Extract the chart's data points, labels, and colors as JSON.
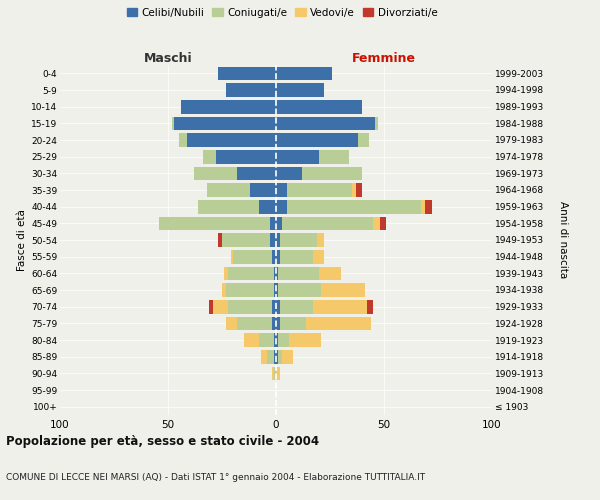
{
  "age_groups": [
    "100+",
    "95-99",
    "90-94",
    "85-89",
    "80-84",
    "75-79",
    "70-74",
    "65-69",
    "60-64",
    "55-59",
    "50-54",
    "45-49",
    "40-44",
    "35-39",
    "30-34",
    "25-29",
    "20-24",
    "15-19",
    "10-14",
    "5-9",
    "0-4"
  ],
  "birth_years": [
    "≤ 1903",
    "1904-1908",
    "1909-1913",
    "1914-1918",
    "1919-1923",
    "1924-1928",
    "1929-1933",
    "1934-1938",
    "1939-1943",
    "1944-1948",
    "1949-1953",
    "1954-1958",
    "1959-1963",
    "1964-1968",
    "1969-1973",
    "1974-1978",
    "1979-1983",
    "1984-1988",
    "1989-1993",
    "1994-1998",
    "1999-2003"
  ],
  "males": {
    "celibi": [
      0,
      0,
      0,
      1,
      1,
      2,
      2,
      1,
      1,
      2,
      3,
      3,
      8,
      12,
      18,
      28,
      41,
      47,
      44,
      23,
      27
    ],
    "coniugati": [
      0,
      0,
      1,
      3,
      7,
      16,
      20,
      22,
      21,
      18,
      22,
      51,
      28,
      20,
      20,
      6,
      4,
      1,
      0,
      0,
      0
    ],
    "vedovi": [
      0,
      0,
      1,
      3,
      7,
      5,
      7,
      2,
      2,
      1,
      0,
      0,
      0,
      0,
      0,
      0,
      0,
      0,
      0,
      0,
      0
    ],
    "divorziati": [
      0,
      0,
      0,
      0,
      0,
      0,
      2,
      0,
      0,
      0,
      2,
      0,
      0,
      0,
      0,
      0,
      0,
      0,
      0,
      0,
      0
    ]
  },
  "females": {
    "nubili": [
      0,
      0,
      0,
      1,
      1,
      2,
      2,
      1,
      1,
      2,
      2,
      3,
      5,
      5,
      12,
      20,
      38,
      46,
      40,
      22,
      26
    ],
    "coniugate": [
      0,
      0,
      0,
      2,
      5,
      12,
      15,
      20,
      19,
      15,
      17,
      42,
      62,
      30,
      28,
      14,
      5,
      1,
      0,
      0,
      0
    ],
    "vedove": [
      0,
      0,
      2,
      5,
      15,
      30,
      25,
      20,
      10,
      5,
      3,
      3,
      2,
      2,
      0,
      0,
      0,
      0,
      0,
      0,
      0
    ],
    "divorziate": [
      0,
      0,
      0,
      0,
      0,
      0,
      3,
      0,
      0,
      0,
      0,
      3,
      3,
      3,
      0,
      0,
      0,
      0,
      0,
      0,
      0
    ]
  },
  "colors": {
    "celibi_nubili": "#3d6fa8",
    "coniugati": "#b8ce96",
    "vedovi": "#f5c96a",
    "divorziati": "#c0392b"
  },
  "xlim": 100,
  "title1": "Popolazione per età, sesso e stato civile - 2004",
  "title2": "COMUNE DI LECCE NEI MARSI (AQ) - Dati ISTAT 1° gennaio 2004 - Elaborazione TUTTITALIA.IT",
  "xlabel_left": "Maschi",
  "xlabel_right": "Femmine",
  "ylabel_left": "Fasce di età",
  "ylabel_right": "Anni di nascita",
  "background": "#f0f0eb",
  "legend_labels": [
    "Celibi/Nubili",
    "Coniugati/e",
    "Vedovi/e",
    "Divorziati/e"
  ]
}
